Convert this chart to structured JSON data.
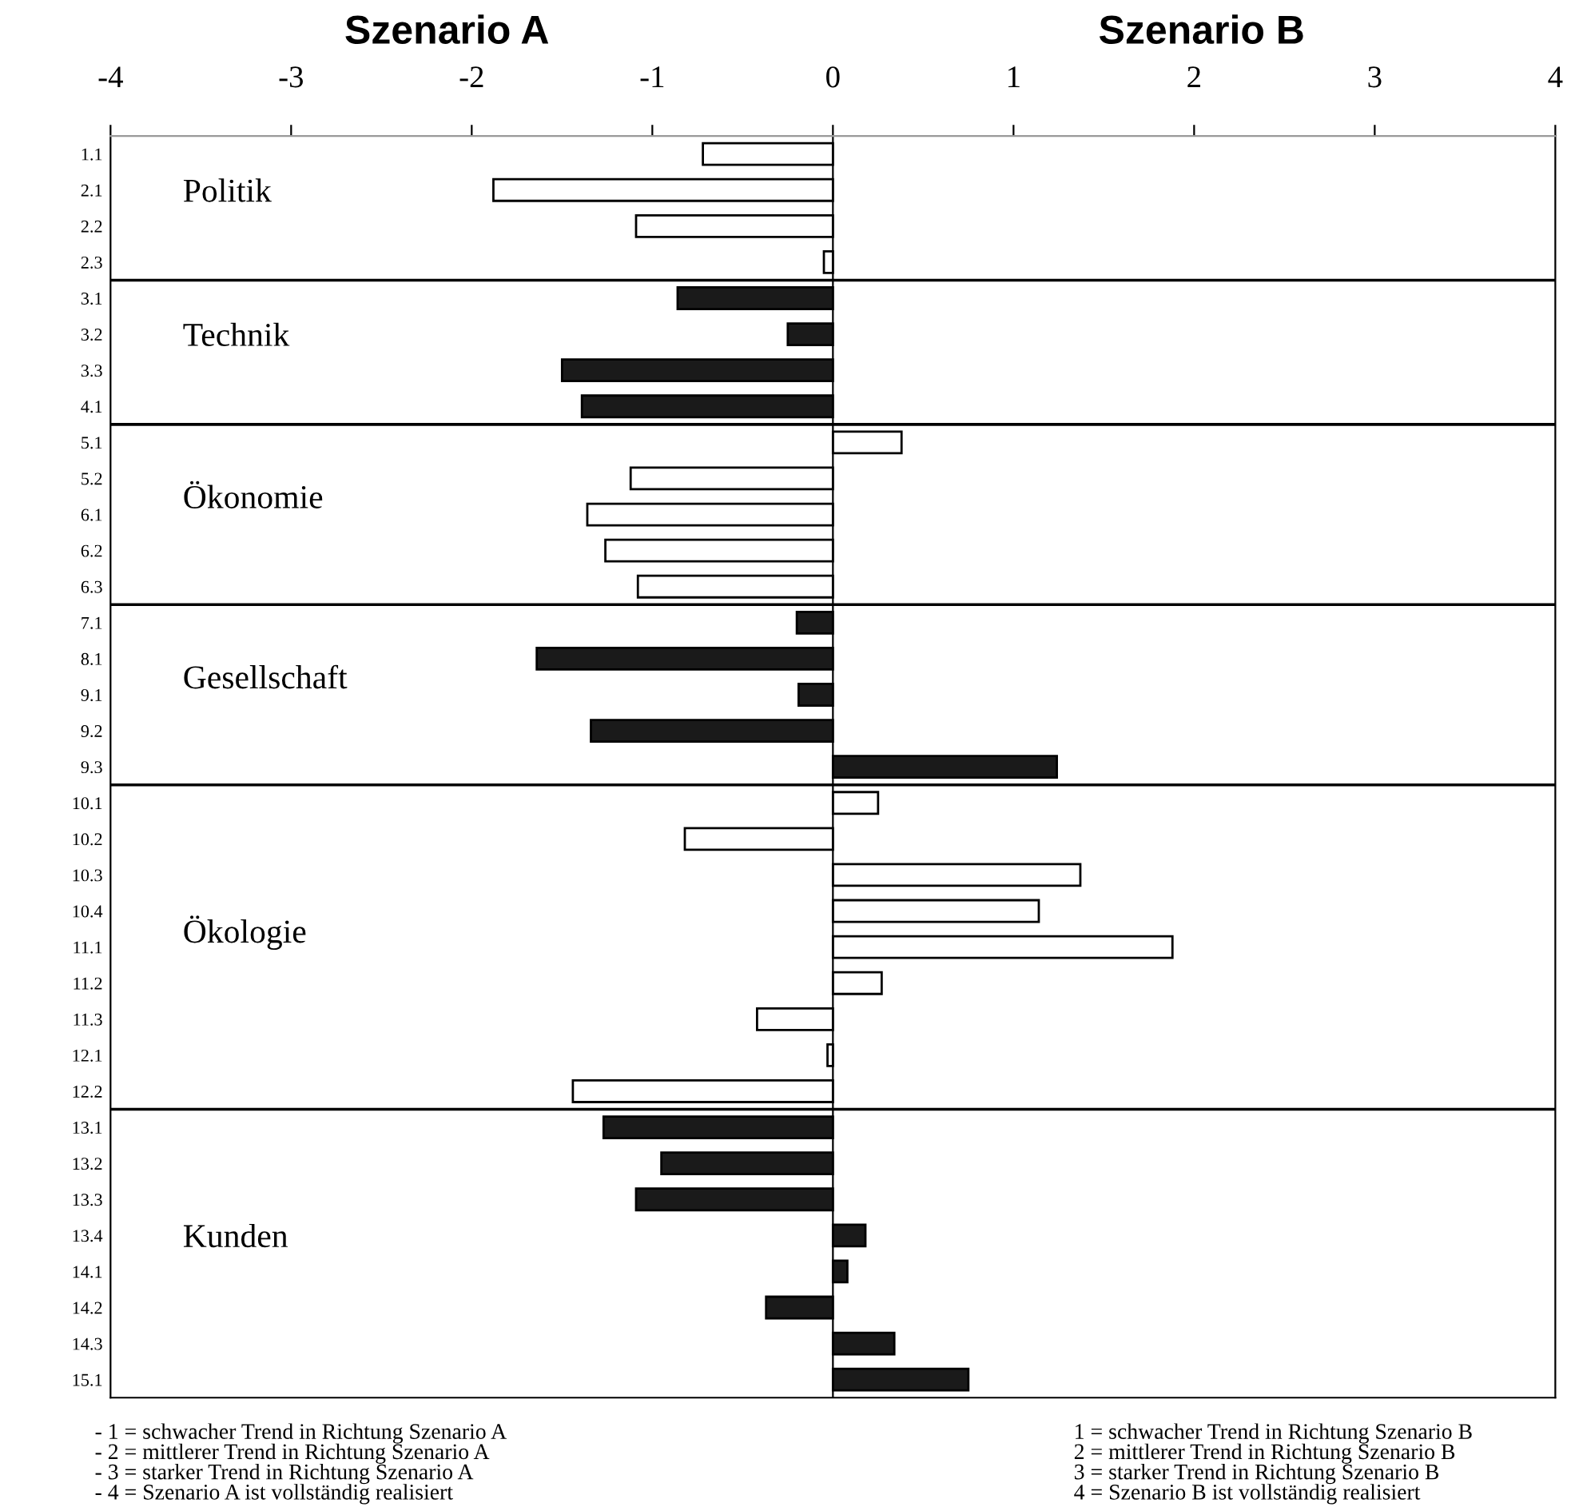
{
  "chart_data": {
    "type": "bar",
    "orientation": "horizontal",
    "title": "Szenario A",
    "subtitle": "Szenario B",
    "categories": [
      "1.1",
      "2.1",
      "2.2",
      "2.3",
      "3.1",
      "3.2",
      "3.3",
      "4.1",
      "5.1",
      "5.2",
      "6.1",
      "6.2",
      "6.3",
      "7.1",
      "8.1",
      "9.1",
      "9.2",
      "9.3",
      "10.1",
      "10.2",
      "10.3",
      "10.4",
      "11.1",
      "11.2",
      "11.3",
      "12.1",
      "12.2",
      "13.1",
      "13.2",
      "13.3",
      "13.4",
      "14.1",
      "14.2",
      "14.3",
      "15.1"
    ],
    "values": [
      -0.72,
      -1.88,
      -1.09,
      -0.05,
      -0.86,
      -0.25,
      -1.5,
      -1.39,
      0.38,
      -1.12,
      -1.36,
      -1.26,
      -1.08,
      -0.2,
      -1.64,
      -0.19,
      -1.34,
      1.24,
      0.25,
      -0.82,
      1.37,
      1.14,
      1.88,
      0.27,
      -0.42,
      -0.03,
      -1.44,
      -1.27,
      -0.95,
      -1.09,
      0.18,
      0.08,
      -0.37,
      0.34,
      0.75
    ],
    "colors": [
      "#ffffff",
      "#ffffff",
      "#ffffff",
      "#ffffff",
      "#1a1a1a",
      "#1a1a1a",
      "#1a1a1a",
      "#1a1a1a",
      "#ffffff",
      "#ffffff",
      "#ffffff",
      "#ffffff",
      "#ffffff",
      "#1a1a1a",
      "#1a1a1a",
      "#1a1a1a",
      "#1a1a1a",
      "#1a1a1a",
      "#ffffff",
      "#ffffff",
      "#ffffff",
      "#ffffff",
      "#ffffff",
      "#ffffff",
      "#ffffff",
      "#ffffff",
      "#ffffff",
      "#1a1a1a",
      "#1a1a1a",
      "#1a1a1a",
      "#1a1a1a",
      "#1a1a1a",
      "#1a1a1a",
      "#1a1a1a",
      "#1a1a1a"
    ],
    "xlim": [
      -4,
      4
    ],
    "xticks": [
      -4,
      -3,
      -2,
      -1,
      0,
      1,
      2,
      3,
      4
    ],
    "grid": false,
    "annotations": [
      "Politik",
      "Technik",
      "Ökonomie",
      "Gesellschaft",
      "Ökologie",
      "Kunden",
      "- 1 = schwacher Trend in Richtung Szenario A\n- 2 = mittlerer Trend in Richtung Szenario A\n- 3 = starker Trend in Richtung Szenario A\n- 4 = Szenario A ist vollständig realisiert",
      "1 = schwacher Trend in Richtung Szenario B\n2 = mittlerer Trend in Richtung Szenario B\n3 = starker Trend in Richtung Szenario B\n4 = Szenario B ist vollständig realisiert"
    ]
  }
}
